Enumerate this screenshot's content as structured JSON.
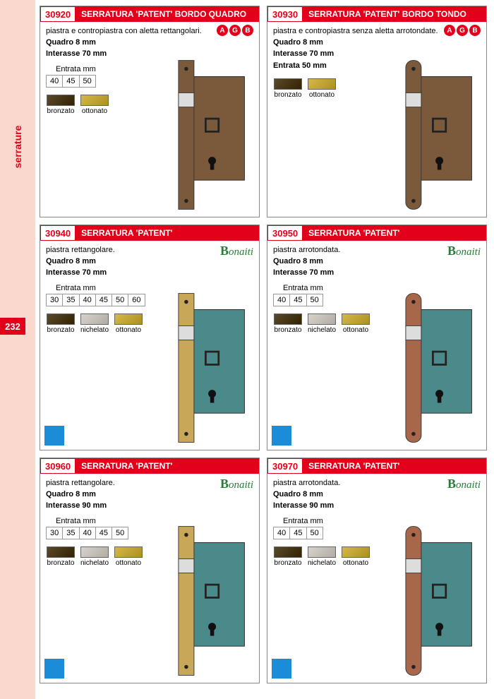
{
  "sidebar": {
    "label": "serrature",
    "page_num": "232"
  },
  "colors": {
    "red": "#e2001a",
    "sidebar_bg": "#fbd8ce",
    "bronzato": "#5a4a2a",
    "ottonato": "#d4b84a",
    "nichelato": "#d8d4cc",
    "lock_body_bronze": "#7a5a3a",
    "lock_body_teal": "#4a8a8a",
    "plate_brass": "#c8a858",
    "plate_copper": "#a8664a"
  },
  "brands": {
    "agb": [
      "A",
      "G",
      "B"
    ],
    "bonaiti": "onaiti"
  },
  "products": [
    {
      "code": "30920",
      "title": "SERRATURA 'PATENT' BORDO QUADRO",
      "desc": "piastra e contropiastra con aletta rettangolari.",
      "specs": [
        "Quadro 8 mm",
        "Interasse 70 mm"
      ],
      "entrata_label": "Entrata mm",
      "entrata": [
        "40",
        "45",
        "50"
      ],
      "finishes": [
        {
          "n": "bronzato",
          "c": "#5a4a2a"
        },
        {
          "n": "ottonato",
          "c": "#d4b84a"
        }
      ],
      "brand": "agb",
      "lock_style": "bronze_square",
      "blue_sq": false
    },
    {
      "code": "30930",
      "title": "SERRATURA 'PATENT' BORDO TONDO",
      "desc": "piastra e contropiastra senza aletta arrotondate.",
      "specs": [
        "Quadro 8 mm",
        "Interasse 70 mm"
      ],
      "entrata_label": "Entrata 50 mm",
      "entrata": [],
      "finishes": [
        {
          "n": "bronzato",
          "c": "#5a4a2a"
        },
        {
          "n": "ottonato",
          "c": "#d4b84a"
        }
      ],
      "brand": "agb",
      "lock_style": "bronze_round",
      "blue_sq": false
    },
    {
      "code": "30940",
      "title": "SERRATURA 'PATENT'",
      "desc": "piastra rettangolare.",
      "specs": [
        "Quadro 8 mm",
        "Interasse 70 mm"
      ],
      "entrata_label": "Entrata mm",
      "entrata": [
        "30",
        "35",
        "40",
        "45",
        "50",
        "60"
      ],
      "finishes": [
        {
          "n": "bronzato",
          "c": "#5a4a2a"
        },
        {
          "n": "nichelato",
          "c": "#d8d4cc"
        },
        {
          "n": "ottonato",
          "c": "#d4b84a"
        }
      ],
      "brand": "bonaiti",
      "lock_style": "brass_square",
      "blue_sq": true
    },
    {
      "code": "30950",
      "title": "SERRATURA 'PATENT'",
      "desc": "piastra arrotondata.",
      "specs": [
        "Quadro 8 mm",
        "Interasse 70 mm"
      ],
      "entrata_label": "Entrata mm",
      "entrata": [
        "40",
        "45",
        "50"
      ],
      "finishes": [
        {
          "n": "bronzato",
          "c": "#5a4a2a"
        },
        {
          "n": "nichelato",
          "c": "#d8d4cc"
        },
        {
          "n": "ottonato",
          "c": "#d4b84a"
        }
      ],
      "brand": "bonaiti",
      "lock_style": "copper_round",
      "blue_sq": true
    },
    {
      "code": "30960",
      "title": "SERRATURA 'PATENT'",
      "desc": "piastra rettangolare.",
      "specs": [
        "Quadro 8 mm",
        "Interasse 90 mm"
      ],
      "entrata_label": "Entrata mm",
      "entrata": [
        "30",
        "35",
        "40",
        "45",
        "50"
      ],
      "finishes": [
        {
          "n": "bronzato",
          "c": "#5a4a2a"
        },
        {
          "n": "nichelato",
          "c": "#d8d4cc"
        },
        {
          "n": "ottonato",
          "c": "#d4b84a"
        }
      ],
      "brand": "bonaiti",
      "lock_style": "brass_square",
      "blue_sq": true
    },
    {
      "code": "30970",
      "title": "SERRATURA 'PATENT'",
      "desc": "piastra arrotondata.",
      "specs": [
        "Quadro 8 mm",
        "Interasse 90 mm"
      ],
      "entrata_label": "Entrata mm",
      "entrata": [
        "40",
        "45",
        "50"
      ],
      "finishes": [
        {
          "n": "bronzato",
          "c": "#5a4a2a"
        },
        {
          "n": "nichelato",
          "c": "#d8d4cc"
        },
        {
          "n": "ottonato",
          "c": "#d4b84a"
        }
      ],
      "brand": "bonaiti",
      "lock_style": "copper_round",
      "blue_sq": true
    }
  ]
}
